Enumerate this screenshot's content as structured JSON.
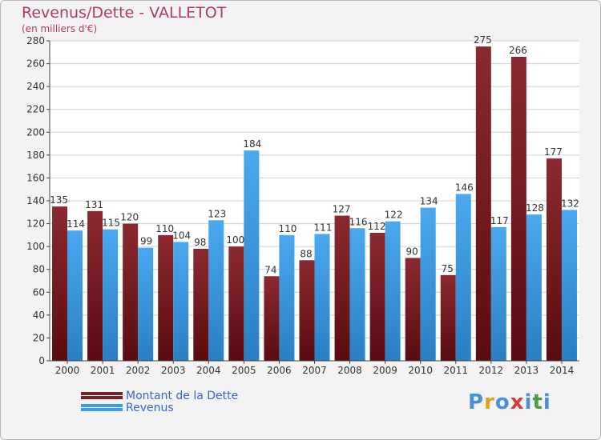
{
  "title": "Revenus/Dette - VALLETOT",
  "subtitle": "(en milliers d'€)",
  "logo": {
    "letters": [
      "P",
      "r",
      "o",
      "x",
      "i",
      "t",
      "i"
    ],
    "colors": [
      "#4a90d9",
      "#e0a020",
      "#4a90d9",
      "#d93a3a",
      "#4a90d9",
      "#4aa040",
      "#4a90d9"
    ]
  },
  "chart_data": {
    "type": "bar",
    "categories": [
      "2000",
      "2001",
      "2002",
      "2003",
      "2004",
      "2005",
      "2006",
      "2007",
      "2008",
      "2009",
      "2010",
      "2011",
      "2012",
      "2013",
      "2014"
    ],
    "series": [
      {
        "name": "Montant de la Dette",
        "color": "#7a1f24",
        "values": [
          135,
          131,
          120,
          110,
          98,
          100,
          74,
          88,
          127,
          112,
          90,
          75,
          275,
          266,
          177
        ]
      },
      {
        "name": "Revenus",
        "color": "#3d9ee6",
        "values": [
          114,
          115,
          99,
          104,
          123,
          184,
          110,
          111,
          116,
          122,
          134,
          146,
          117,
          128,
          132
        ]
      }
    ],
    "ylim": [
      0,
      280
    ],
    "yticks": [
      "0",
      "20",
      "40",
      "60",
      "80",
      "100",
      "120",
      "140",
      "160",
      "180",
      "200",
      "220",
      "240",
      "260",
      "280"
    ],
    "grid": true,
    "legend_position": "bottom-left"
  }
}
